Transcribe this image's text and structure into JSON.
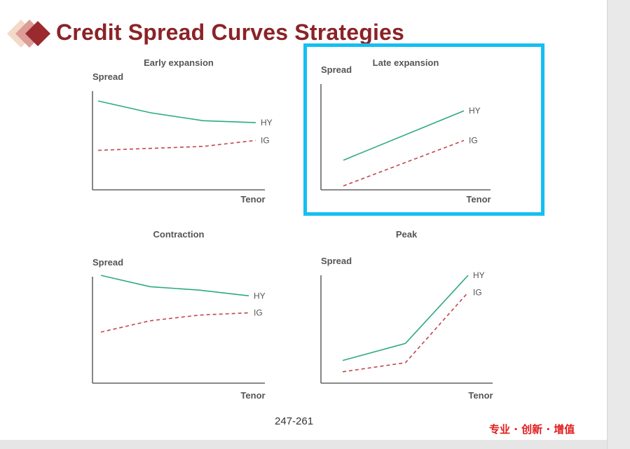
{
  "title": "Credit Spread Curves Strategies",
  "footer": {
    "page": "247-261",
    "brand": "专业 · 创新 · 增值"
  },
  "colors": {
    "title": "#8b2327",
    "hy": "#2eaa7f",
    "ig": "#c0474d",
    "highlight": "#14bff4",
    "brand": "#e21b1b"
  },
  "chart_data": [
    {
      "type": "line",
      "title": "Early expansion",
      "xlabel": "Tenor",
      "ylabel": "Spread",
      "x": [
        0,
        1,
        2,
        3
      ],
      "series": [
        {
          "name": "HY",
          "values": [
            0.9,
            0.78,
            0.7,
            0.68
          ]
        },
        {
          "name": "IG",
          "values": [
            0.4,
            0.42,
            0.44,
            0.5
          ]
        }
      ]
    },
    {
      "type": "line",
      "title": "Late expansion",
      "xlabel": "Tenor",
      "ylabel": "Spread",
      "highlighted": true,
      "x": [
        0,
        1
      ],
      "series": [
        {
          "name": "HY",
          "values": [
            0.3,
            0.8
          ]
        },
        {
          "name": "IG",
          "values": [
            0.04,
            0.5
          ]
        }
      ]
    },
    {
      "type": "line",
      "title": "Contraction",
      "xlabel": "Tenor",
      "ylabel": "Spread",
      "x": [
        0,
        1,
        2,
        3
      ],
      "series": [
        {
          "name": "HY",
          "values": [
            0.95,
            0.85,
            0.82,
            0.77
          ]
        },
        {
          "name": "IG",
          "values": [
            0.45,
            0.55,
            0.6,
            0.62
          ]
        }
      ]
    },
    {
      "type": "line",
      "title": "Peak",
      "xlabel": "Tenor",
      "ylabel": "Spread",
      "x": [
        0,
        1,
        2
      ],
      "series": [
        {
          "name": "HY",
          "values": [
            0.2,
            0.35,
            0.95
          ]
        },
        {
          "name": "IG",
          "values": [
            0.1,
            0.18,
            0.8
          ]
        }
      ]
    }
  ]
}
